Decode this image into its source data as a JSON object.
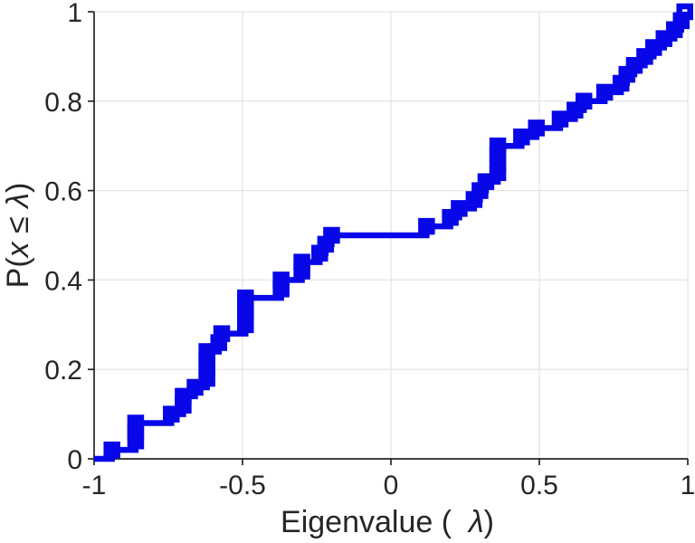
{
  "figure": {
    "background_color": "#ffffff",
    "line_color": "#0707e8",
    "axis_color": "#262626",
    "grid_color": "#e4e4e4",
    "tick_label_color": "#262626",
    "tick_font_size": 30,
    "label_font_size": 34
  },
  "chart_data": {
    "type": "line",
    "subtype": "empirical-cdf-stairs",
    "marker": "square",
    "title": "",
    "xlabel": "Eigenvalue (  λ)",
    "ylabel": "P(x ≤ λ)",
    "xlabel_parts": [
      {
        "text": "Eigenvalue (  ",
        "italic": false
      },
      {
        "text": "λ",
        "italic": true
      },
      {
        "text": ")",
        "italic": false
      }
    ],
    "ylabel_parts": [
      {
        "text": "P(",
        "italic": false
      },
      {
        "text": "x",
        "italic": true
      },
      {
        "text": " ≤ ",
        "italic": false
      },
      {
        "text": "λ",
        "italic": true
      },
      {
        "text": ")",
        "italic": false
      }
    ],
    "xlim": [
      -1,
      1
    ],
    "ylim": [
      0,
      1
    ],
    "xticks": {
      "values": [
        -1,
        -0.5,
        0,
        0.5,
        1
      ],
      "labels": [
        "-1",
        "-0.5",
        "0",
        "0.5",
        "1"
      ]
    },
    "yticks": {
      "values": [
        0,
        0.2,
        0.4,
        0.6,
        0.8,
        1
      ],
      "labels": [
        "0",
        "0.2",
        "0.4",
        "0.6",
        "0.8",
        "1"
      ]
    },
    "grid": true,
    "legend": null,
    "points": [
      [
        -0.94,
        0.02
      ],
      [
        -0.86,
        0.04
      ],
      [
        -0.86,
        0.06
      ],
      [
        -0.86,
        0.08
      ],
      [
        -0.74,
        0.1
      ],
      [
        -0.7,
        0.12
      ],
      [
        -0.7,
        0.14
      ],
      [
        -0.66,
        0.16
      ],
      [
        -0.62,
        0.18
      ],
      [
        -0.62,
        0.2
      ],
      [
        -0.62,
        0.22
      ],
      [
        -0.62,
        0.24
      ],
      [
        -0.58,
        0.26
      ],
      [
        -0.57,
        0.28
      ],
      [
        -0.49,
        0.3
      ],
      [
        -0.49,
        0.32
      ],
      [
        -0.49,
        0.34
      ],
      [
        -0.49,
        0.36
      ],
      [
        -0.37,
        0.38
      ],
      [
        -0.37,
        0.4
      ],
      [
        -0.3,
        0.42
      ],
      [
        -0.3,
        0.44
      ],
      [
        -0.24,
        0.46
      ],
      [
        -0.22,
        0.48
      ],
      [
        -0.2,
        0.5
      ],
      [
        0.12,
        0.52
      ],
      [
        0.2,
        0.54
      ],
      [
        0.23,
        0.56
      ],
      [
        0.28,
        0.58
      ],
      [
        0.3,
        0.6
      ],
      [
        0.32,
        0.62
      ],
      [
        0.36,
        0.64
      ],
      [
        0.36,
        0.66
      ],
      [
        0.36,
        0.68
      ],
      [
        0.36,
        0.7
      ],
      [
        0.44,
        0.72
      ],
      [
        0.49,
        0.74
      ],
      [
        0.57,
        0.76
      ],
      [
        0.62,
        0.78
      ],
      [
        0.65,
        0.8
      ],
      [
        0.72,
        0.82
      ],
      [
        0.775,
        0.84
      ],
      [
        0.795,
        0.86
      ],
      [
        0.82,
        0.88
      ],
      [
        0.855,
        0.9
      ],
      [
        0.885,
        0.92
      ],
      [
        0.92,
        0.94
      ],
      [
        0.955,
        0.96
      ],
      [
        0.978,
        0.98
      ],
      [
        0.99,
        1.0
      ]
    ]
  }
}
